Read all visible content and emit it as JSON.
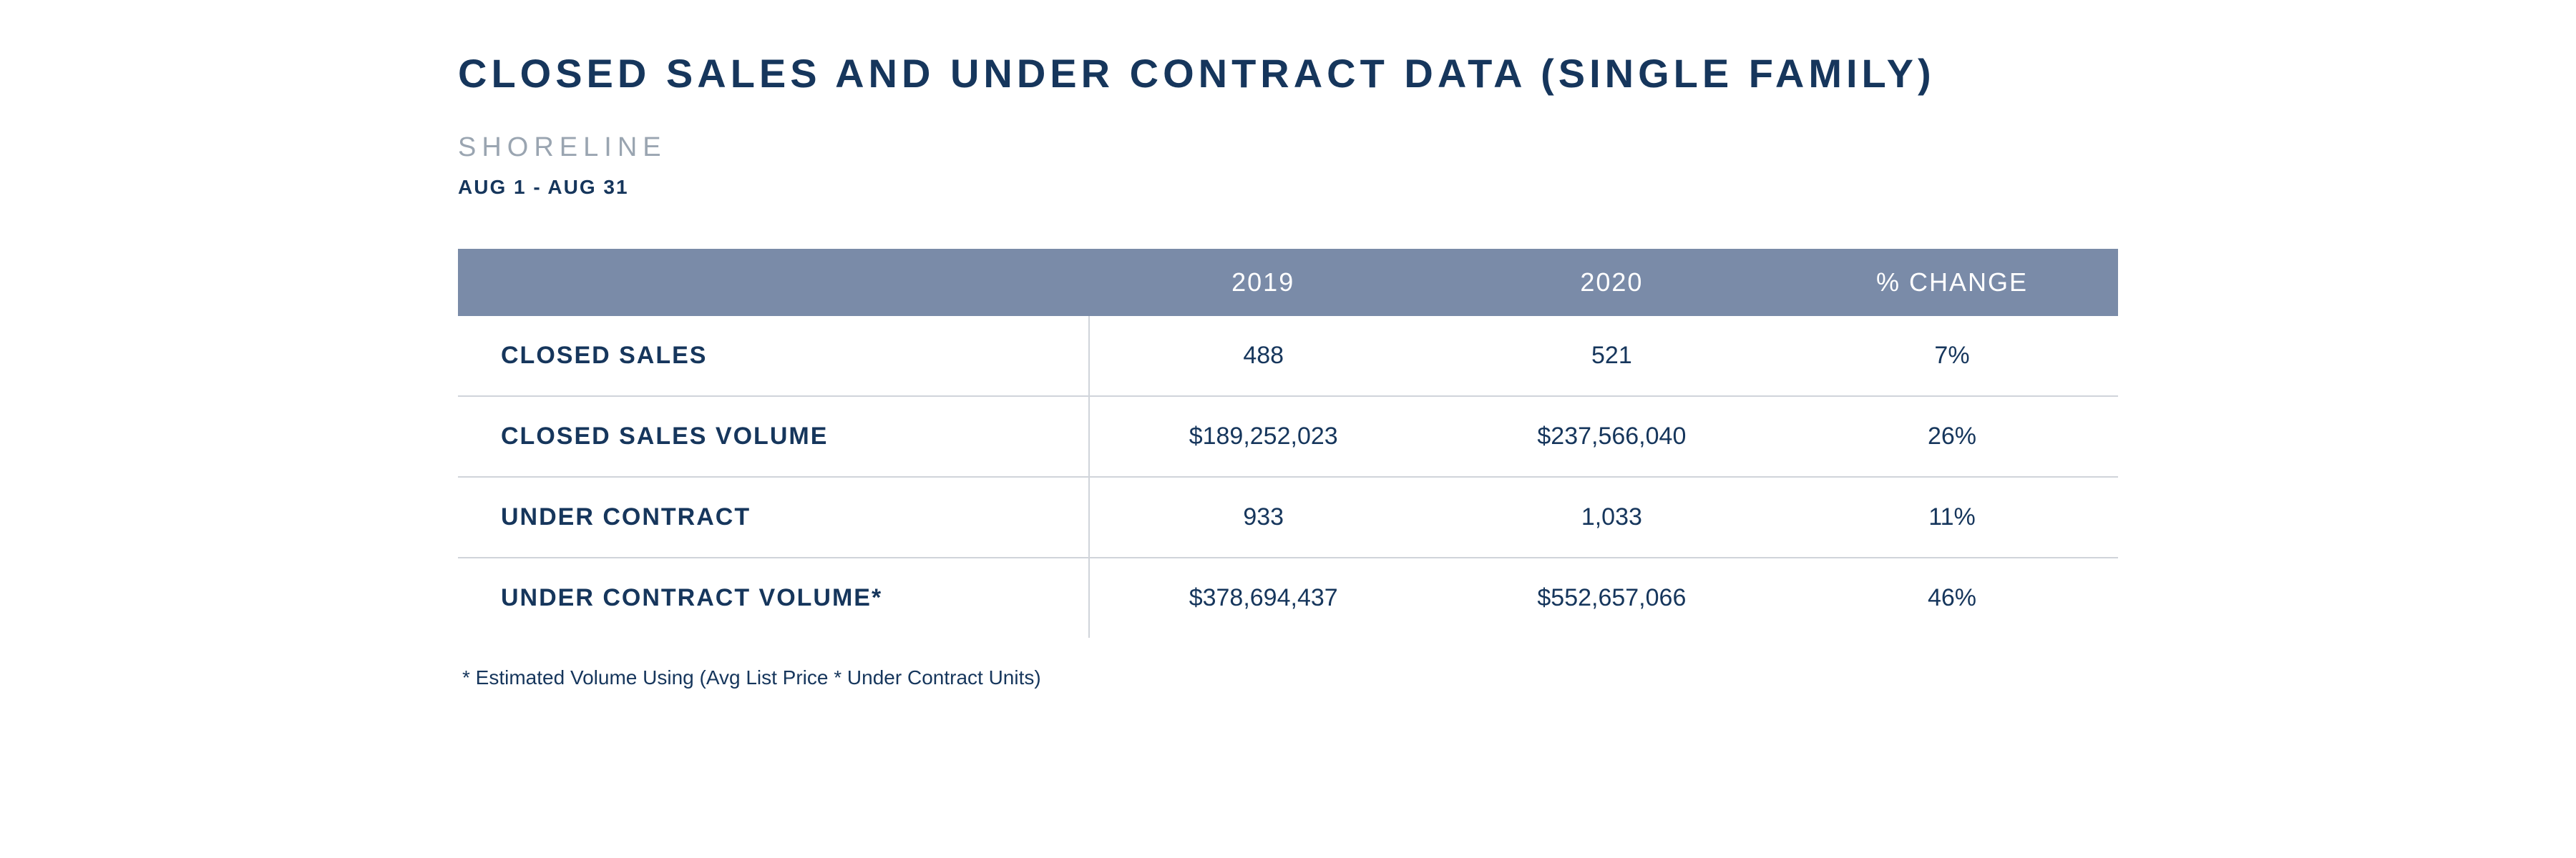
{
  "title": "CLOSED SALES AND UNDER CONTRACT DATA (SINGLE FAMILY)",
  "subtitle": "SHORELINE",
  "date_range": "AUG 1 - AUG 31",
  "table": {
    "columns": [
      "",
      "2019",
      "2020",
      "% CHANGE"
    ],
    "rows": [
      {
        "label": "CLOSED SALES",
        "y2019": "488",
        "y2020": "521",
        "change": "7%"
      },
      {
        "label": "CLOSED SALES VOLUME",
        "y2019": "$189,252,023",
        "y2020": "$237,566,040",
        "change": "26%"
      },
      {
        "label": "UNDER CONTRACT",
        "y2019": "933",
        "y2020": "1,033",
        "change": "11%"
      },
      {
        "label": "UNDER CONTRACT VOLUME*",
        "y2019": "$378,694,437",
        "y2020": "$552,657,066",
        "change": "46%"
      }
    ]
  },
  "footnote": "* Estimated Volume Using (Avg List Price * Under Contract Units)",
  "colors": {
    "title_text": "#16365c",
    "subtitle_text": "#9aa5b1",
    "header_bg": "#7a8ba8",
    "header_text": "#ffffff",
    "border": "#d0d4da",
    "background": "#ffffff"
  },
  "typography": {
    "title_fontsize": 56,
    "subtitle_fontsize": 38,
    "date_fontsize": 28,
    "th_fontsize": 36,
    "td_fontsize": 34,
    "footnote_fontsize": 28
  }
}
